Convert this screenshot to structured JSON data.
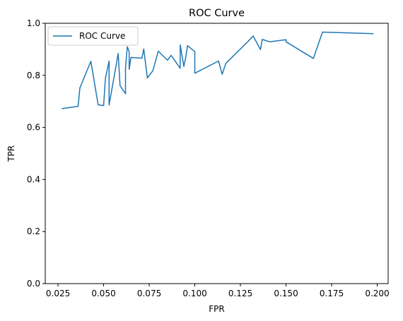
{
  "chart_data": {
    "type": "line",
    "title": "ROC Curve",
    "xlabel": "FPR",
    "ylabel": "TPR",
    "xlim": [
      0.018,
      0.206
    ],
    "ylim": [
      0.0,
      1.0
    ],
    "x_ticks": [
      0.025,
      0.05,
      0.075,
      0.1,
      0.125,
      0.15,
      0.175,
      0.2
    ],
    "x_tick_labels": [
      "0.025",
      "0.050",
      "0.075",
      "0.100",
      "0.125",
      "0.150",
      "0.175",
      "0.200"
    ],
    "y_ticks": [
      0.0,
      0.2,
      0.4,
      0.6,
      0.8,
      1.0
    ],
    "y_tick_labels": [
      "0.0",
      "0.2",
      "0.4",
      "0.6",
      "0.8",
      "1.0"
    ],
    "grid": false,
    "legend_position": "top-left",
    "series": [
      {
        "name": "ROC Curve",
        "color": "#1f77b4",
        "x": [
          0.027,
          0.036,
          0.037,
          0.043,
          0.047,
          0.05,
          0.051,
          0.053,
          0.053,
          0.058,
          0.059,
          0.062,
          0.062,
          0.063,
          0.064,
          0.064,
          0.065,
          0.071,
          0.072,
          0.074,
          0.077,
          0.08,
          0.085,
          0.087,
          0.092,
          0.092,
          0.094,
          0.095,
          0.096,
          0.1,
          0.1,
          0.113,
          0.115,
          0.117,
          0.129,
          0.132,
          0.136,
          0.137,
          0.141,
          0.15,
          0.15,
          0.165,
          0.17,
          0.198
        ],
        "y": [
          0.672,
          0.681,
          0.752,
          0.854,
          0.687,
          0.684,
          0.79,
          0.855,
          0.686,
          0.884,
          0.761,
          0.729,
          0.83,
          0.91,
          0.891,
          0.823,
          0.869,
          0.866,
          0.901,
          0.79,
          0.818,
          0.893,
          0.858,
          0.877,
          0.827,
          0.917,
          0.834,
          0.869,
          0.914,
          0.891,
          0.808,
          0.855,
          0.804,
          0.846,
          0.929,
          0.951,
          0.899,
          0.938,
          0.929,
          0.937,
          0.929,
          0.865,
          0.966,
          0.96
        ]
      }
    ]
  }
}
